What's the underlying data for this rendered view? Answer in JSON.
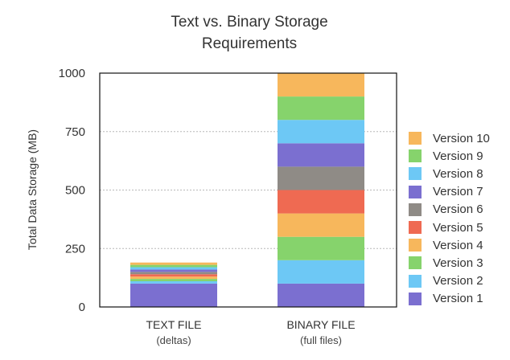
{
  "chart_data": {
    "type": "bar",
    "stacked": true,
    "title_lines": [
      "Text vs. Binary Storage",
      "Requirements"
    ],
    "ylabel": "Total Data Storage (MB)",
    "xlabel": "",
    "ylim": [
      0,
      1000
    ],
    "yticks": [
      0,
      250,
      500,
      750,
      1000
    ],
    "grid": true,
    "legend_position": "right",
    "categories": [
      {
        "label": "TEXT FILE",
        "sublabel": "(deltas)"
      },
      {
        "label": "BINARY FILE",
        "sublabel": "(full files)"
      }
    ],
    "series": [
      {
        "name": "Version 1",
        "color": "#7b6fd0",
        "values": [
          100,
          100
        ]
      },
      {
        "name": "Version 2",
        "color": "#6dc8f5",
        "values": [
          10,
          100
        ]
      },
      {
        "name": "Version 3",
        "color": "#86d36c",
        "values": [
          10,
          100
        ]
      },
      {
        "name": "Version 4",
        "color": "#f7b75c",
        "values": [
          10,
          100
        ]
      },
      {
        "name": "Version 5",
        "color": "#ef6a52",
        "values": [
          10,
          100
        ]
      },
      {
        "name": "Version 6",
        "color": "#8f8b86",
        "values": [
          10,
          100
        ]
      },
      {
        "name": "Version 7",
        "color": "#7b6fd0",
        "values": [
          10,
          100
        ]
      },
      {
        "name": "Version 8",
        "color": "#6dc8f5",
        "values": [
          10,
          100
        ]
      },
      {
        "name": "Version 9",
        "color": "#86d36c",
        "values": [
          10,
          100
        ]
      },
      {
        "name": "Version 10",
        "color": "#f7b75c",
        "values": [
          10,
          100
        ]
      }
    ]
  }
}
